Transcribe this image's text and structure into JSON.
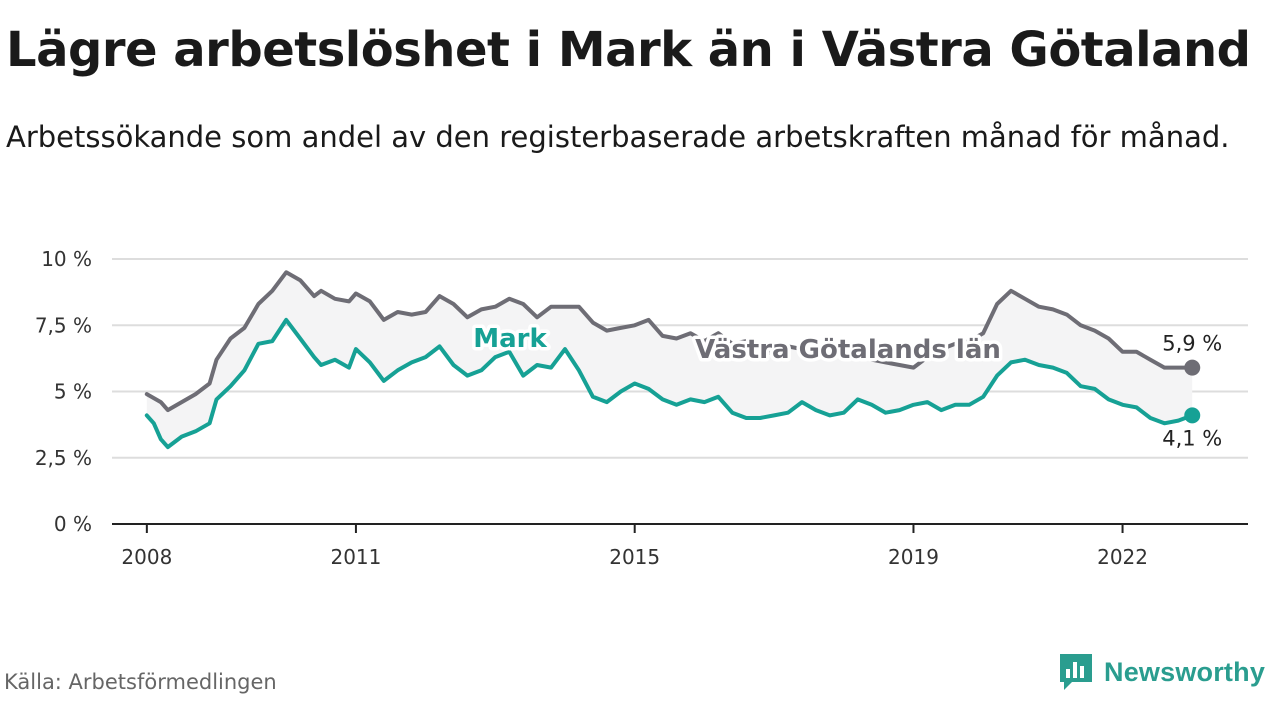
{
  "header": {
    "title": "Lägre arbetslöshet i Mark än i Västra Götaland",
    "subtitle": "Arbetssökande som andel av den registerbaserade arbetskraften månad för månad."
  },
  "footer": {
    "source": "Källa: Arbetsförmedlingen",
    "brand": "Newsworthy"
  },
  "colors": {
    "region": "#6e6d75",
    "mark": "#16a195",
    "band": "#f4f4f5",
    "grid": "#dddddd",
    "axis": "#222222"
  },
  "chart_data": {
    "type": "line",
    "title": "Lägre arbetslöshet i Mark än i Västra Götaland",
    "xlabel": "",
    "ylabel": "",
    "ylim": [
      0,
      10
    ],
    "xlim": [
      2007.5,
      2023.8
    ],
    "grid": true,
    "y_ticks": [
      0,
      2.5,
      5,
      7.5,
      10
    ],
    "y_tick_labels": [
      "0 %",
      "2,5 %",
      "5 %",
      "7,5 %",
      "10 %"
    ],
    "x_ticks": [
      2008,
      2011,
      2015,
      2019,
      2022
    ],
    "x_tick_labels": [
      "2008",
      "2011",
      "2015",
      "2019",
      "2022"
    ],
    "series": [
      {
        "name": "Västra Götalands län",
        "color": "#6e6d75",
        "end_label": "5,9 %",
        "x": [
          2008.0,
          2008.2,
          2008.3,
          2008.5,
          2008.7,
          2008.9,
          2009.0,
          2009.2,
          2009.4,
          2009.6,
          2009.8,
          2010.0,
          2010.2,
          2010.4,
          2010.5,
          2010.7,
          2010.9,
          2011.0,
          2011.2,
          2011.4,
          2011.6,
          2011.8,
          2012.0,
          2012.2,
          2012.4,
          2012.6,
          2012.8,
          2013.0,
          2013.2,
          2013.4,
          2013.6,
          2013.8,
          2014.0,
          2014.2,
          2014.4,
          2014.6,
          2014.8,
          2015.0,
          2015.2,
          2015.4,
          2015.6,
          2015.8,
          2016.0,
          2016.2,
          2016.4,
          2016.6,
          2016.8,
          2017.0,
          2017.2,
          2017.4,
          2017.6,
          2017.8,
          2018.0,
          2018.2,
          2018.4,
          2018.6,
          2018.8,
          2019.0,
          2019.2,
          2019.4,
          2019.6,
          2019.8,
          2020.0,
          2020.2,
          2020.4,
          2020.6,
          2020.8,
          2021.0,
          2021.2,
          2021.4,
          2021.6,
          2021.8,
          2022.0,
          2022.2,
          2022.4,
          2022.6,
          2022.8,
          2023.0
        ],
        "values": [
          4.9,
          4.6,
          4.3,
          4.6,
          4.9,
          5.3,
          6.2,
          7.0,
          7.4,
          8.3,
          8.8,
          9.5,
          9.2,
          8.6,
          8.8,
          8.5,
          8.4,
          8.7,
          8.4,
          7.7,
          8.0,
          7.9,
          8.0,
          8.6,
          8.3,
          7.8,
          8.1,
          8.2,
          8.5,
          8.3,
          7.8,
          8.2,
          8.2,
          8.2,
          7.6,
          7.3,
          7.4,
          7.5,
          7.7,
          7.1,
          7.0,
          7.2,
          6.9,
          7.2,
          6.8,
          6.9,
          6.6,
          6.4,
          6.7,
          6.6,
          6.8,
          6.6,
          6.5,
          6.4,
          6.2,
          6.1,
          6.0,
          5.9,
          6.3,
          6.6,
          6.8,
          6.9,
          7.2,
          8.3,
          8.8,
          8.5,
          8.2,
          8.1,
          7.9,
          7.5,
          7.3,
          7.0,
          6.5,
          6.5,
          6.2,
          5.9,
          5.9,
          5.9
        ]
      },
      {
        "name": "Mark",
        "color": "#16a195",
        "end_label": "4,1 %",
        "x": [
          2008.0,
          2008.1,
          2008.2,
          2008.3,
          2008.5,
          2008.7,
          2008.9,
          2009.0,
          2009.2,
          2009.4,
          2009.6,
          2009.8,
          2010.0,
          2010.2,
          2010.4,
          2010.5,
          2010.7,
          2010.9,
          2011.0,
          2011.2,
          2011.4,
          2011.6,
          2011.8,
          2012.0,
          2012.2,
          2012.4,
          2012.6,
          2012.8,
          2013.0,
          2013.2,
          2013.4,
          2013.6,
          2013.8,
          2014.0,
          2014.2,
          2014.4,
          2014.6,
          2014.8,
          2015.0,
          2015.2,
          2015.4,
          2015.6,
          2015.8,
          2016.0,
          2016.2,
          2016.4,
          2016.6,
          2016.8,
          2017.0,
          2017.2,
          2017.4,
          2017.6,
          2017.8,
          2018.0,
          2018.2,
          2018.4,
          2018.6,
          2018.8,
          2019.0,
          2019.2,
          2019.4,
          2019.6,
          2019.8,
          2020.0,
          2020.2,
          2020.4,
          2020.6,
          2020.8,
          2021.0,
          2021.2,
          2021.4,
          2021.6,
          2021.8,
          2022.0,
          2022.2,
          2022.4,
          2022.6,
          2022.8,
          2023.0
        ],
        "values": [
          4.1,
          3.8,
          3.2,
          2.9,
          3.3,
          3.5,
          3.8,
          4.7,
          5.2,
          5.8,
          6.8,
          6.9,
          7.7,
          7.0,
          6.3,
          6.0,
          6.2,
          5.9,
          6.6,
          6.1,
          5.4,
          5.8,
          6.1,
          6.3,
          6.7,
          6.0,
          5.6,
          5.8,
          6.3,
          6.5,
          5.6,
          6.0,
          5.9,
          6.6,
          5.8,
          4.8,
          4.6,
          5.0,
          5.3,
          5.1,
          4.7,
          4.5,
          4.7,
          4.6,
          4.8,
          4.2,
          4.0,
          4.0,
          4.1,
          4.2,
          4.6,
          4.3,
          4.1,
          4.2,
          4.7,
          4.5,
          4.2,
          4.3,
          4.5,
          4.6,
          4.3,
          4.5,
          4.5,
          4.8,
          5.6,
          6.1,
          6.2,
          6.0,
          5.9,
          5.7,
          5.2,
          5.1,
          4.7,
          4.5,
          4.4,
          4.0,
          3.8,
          3.9,
          4.1
        ]
      }
    ]
  }
}
